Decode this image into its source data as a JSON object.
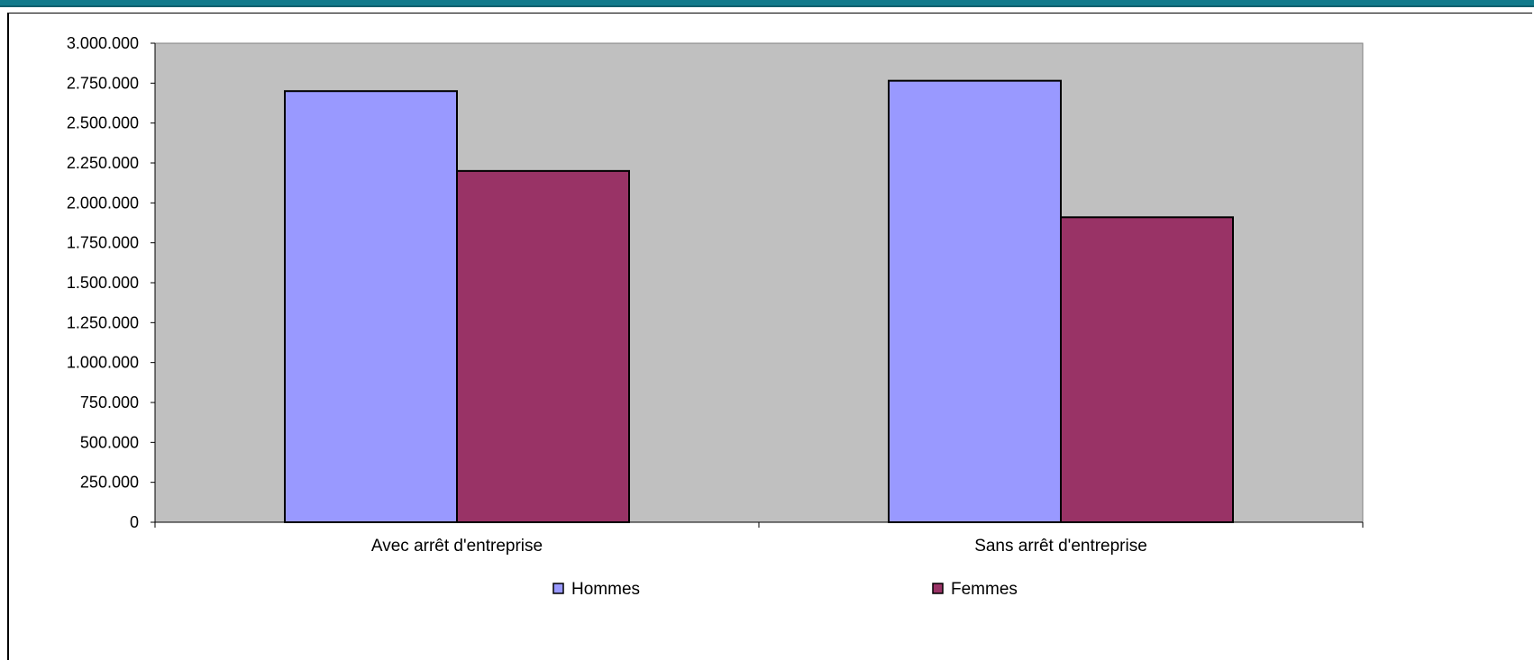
{
  "chart_data": {
    "type": "bar",
    "categories": [
      "Avec arrêt d'entreprise",
      "Sans arrêt d'entreprise"
    ],
    "series": [
      {
        "name": "Hommes",
        "values": [
          2700000,
          2765000
        ]
      },
      {
        "name": "Femmes",
        "values": [
          2200000,
          1910000
        ]
      }
    ],
    "ylim": [
      0,
      3000000
    ],
    "yticks": [
      0,
      250000,
      500000,
      750000,
      1000000,
      1250000,
      1500000,
      1750000,
      2000000,
      2250000,
      2500000,
      2750000,
      3000000
    ],
    "ytick_labels": [
      "0",
      "250.000",
      "500.000",
      "750.000",
      "1.000.000",
      "1.250.000",
      "1.500.000",
      "1.750.000",
      "2.000.000",
      "2.250.000",
      "2.500.000",
      "2.750.000",
      "3.000.000"
    ],
    "grid": false,
    "legend_position": "bottom",
    "colors": {
      "plot_background": "#c0c0c0",
      "Hommes": "#9999ff",
      "Femmes": "#993366",
      "title_bar": "#117a8b"
    }
  }
}
